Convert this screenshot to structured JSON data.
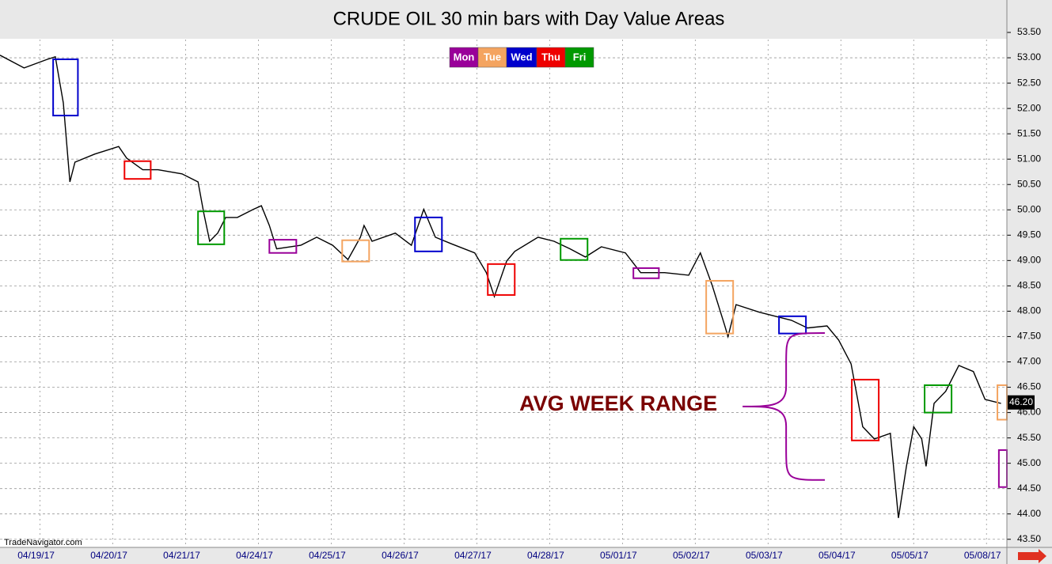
{
  "chart_data": {
    "type": "line",
    "title": "CRUDE OIL 30 min bars with Day Value Areas",
    "watermark": "TradeNavigator.com",
    "xlim": [
      -0.05,
      13.78
    ],
    "xticks": [
      {
        "value": 0.5,
        "label": "04/19/17"
      },
      {
        "value": 1.5,
        "label": "04/20/17"
      },
      {
        "value": 2.5,
        "label": "04/21/17"
      },
      {
        "value": 3.5,
        "label": "04/24/17"
      },
      {
        "value": 4.5,
        "label": "04/25/17"
      },
      {
        "value": 5.5,
        "label": "04/26/17"
      },
      {
        "value": 6.5,
        "label": "04/27/17"
      },
      {
        "value": 7.5,
        "label": "04/28/17"
      },
      {
        "value": 8.5,
        "label": "05/01/17"
      },
      {
        "value": 9.5,
        "label": "05/02/17"
      },
      {
        "value": 10.5,
        "label": "05/03/17"
      },
      {
        "value": 11.5,
        "label": "05/04/17"
      },
      {
        "value": 12.5,
        "label": "05/05/17"
      },
      {
        "value": 13.5,
        "label": "05/08/17"
      }
    ],
    "ylim": [
      43.34,
      54.14
    ],
    "yticks": [
      {
        "value": 43.5,
        "label": "43.50"
      },
      {
        "value": 44,
        "label": "44.00"
      },
      {
        "value": 44.5,
        "label": "44.50"
      },
      {
        "value": 45,
        "label": "45.00"
      },
      {
        "value": 45.5,
        "label": "45.50"
      },
      {
        "value": 46,
        "label": "46.00"
      },
      {
        "value": 46.5,
        "label": "46.50"
      },
      {
        "value": 47,
        "label": "47.00"
      },
      {
        "value": 47.5,
        "label": "47.50"
      },
      {
        "value": 48,
        "label": "48.00"
      },
      {
        "value": 48.5,
        "label": "48.50"
      },
      {
        "value": 49,
        "label": "49.00"
      },
      {
        "value": 49.5,
        "label": "49.50"
      },
      {
        "value": 50,
        "label": "50.00"
      },
      {
        "value": 50.5,
        "label": "50.50"
      },
      {
        "value": 51,
        "label": "51.00"
      },
      {
        "value": 51.5,
        "label": "51.50"
      },
      {
        "value": 52,
        "label": "52.00"
      },
      {
        "value": 52.5,
        "label": "52.50"
      },
      {
        "value": 53,
        "label": "53.00"
      },
      {
        "value": 53.5,
        "label": "53.50"
      }
    ],
    "grid": true,
    "series": [
      {
        "color": "#000000",
        "x": [
          -0.05,
          0.28,
          0.6,
          0.71,
          0.82,
          0.91,
          0.98,
          1.25,
          1.58,
          1.69,
          1.91,
          2.12,
          2.45,
          2.67,
          2.75,
          2.83,
          2.94,
          3.05,
          3.21,
          3.43,
          3.54,
          3.65,
          3.75,
          4.08,
          4.3,
          4.52,
          4.73,
          4.9,
          4.95,
          5.06,
          5.38,
          5.6,
          5.77,
          5.93,
          6.15,
          6.47,
          6.63,
          6.74,
          6.91,
          7.02,
          7.34,
          7.56,
          7.78,
          7.99,
          8.21,
          8.54,
          8.75,
          9.08,
          9.41,
          9.57,
          9.73,
          9.9,
          9.95,
          10.06,
          10.38,
          10.6,
          10.82,
          11.04,
          11.31,
          11.47,
          11.64,
          11.8,
          11.96,
          12.18,
          12.29,
          12.4,
          12.5,
          12.61,
          12.67,
          12.78,
          12.94,
          13.12,
          13.32,
          13.48,
          13.7
        ],
        "values": [
          53.05,
          52.8,
          52.97,
          53.02,
          52.11,
          50.55,
          50.94,
          51.1,
          51.25,
          51.02,
          50.79,
          50.79,
          50.71,
          50.55,
          49.93,
          49.38,
          49.54,
          49.85,
          49.85,
          50.01,
          50.08,
          49.69,
          49.23,
          49.3,
          49.46,
          49.3,
          49.02,
          49.46,
          49.69,
          49.38,
          49.54,
          49.3,
          50.01,
          49.46,
          49.33,
          49.15,
          48.76,
          48.29,
          48.99,
          49.18,
          49.46,
          49.38,
          49.23,
          49.07,
          49.27,
          49.15,
          48.76,
          48.76,
          48.71,
          49.15,
          48.52,
          47.74,
          47.5,
          48.13,
          47.98,
          47.9,
          47.82,
          47.67,
          47.71,
          47.43,
          46.96,
          45.72,
          45.48,
          45.59,
          43.92,
          44.94,
          45.72,
          45.48,
          44.94,
          46.18,
          46.42,
          46.93,
          46.81,
          46.26,
          46.18
        ]
      }
    ],
    "legend": [
      {
        "name": "Mon",
        "color": "#990099"
      },
      {
        "name": "Tue",
        "color": "#f4a460"
      },
      {
        "name": "Wed",
        "color": "#0000cc"
      },
      {
        "name": "Thu",
        "color": "#ee0000"
      },
      {
        "name": "Fri",
        "color": "#009900"
      }
    ],
    "value_areas": [
      {
        "color": "#0000cc",
        "x": [
          0.68,
          1.02
        ],
        "low": 51.86,
        "high": 52.97
      },
      {
        "color": "#ee0000",
        "x": [
          1.66,
          2.02
        ],
        "low": 50.61,
        "high": 50.96
      },
      {
        "color": "#009900",
        "x": [
          2.67,
          3.03
        ],
        "low": 49.32,
        "high": 49.97
      },
      {
        "color": "#990099",
        "x": [
          3.65,
          4.02
        ],
        "low": 49.15,
        "high": 49.41
      },
      {
        "color": "#f4a460",
        "x": [
          4.65,
          5.02
        ],
        "low": 48.98,
        "high": 49.4
      },
      {
        "color": "#0000cc",
        "x": [
          5.65,
          6.02
        ],
        "low": 49.18,
        "high": 49.85
      },
      {
        "color": "#ee0000",
        "x": [
          6.65,
          7.02
        ],
        "low": 48.32,
        "high": 48.93
      },
      {
        "color": "#009900",
        "x": [
          7.65,
          8.02
        ],
        "low": 49.01,
        "high": 49.43
      },
      {
        "color": "#990099",
        "x": [
          8.65,
          9.0
        ],
        "low": 48.65,
        "high": 48.85
      },
      {
        "color": "#f4a460",
        "x": [
          9.65,
          10.02
        ],
        "low": 47.56,
        "high": 48.6
      },
      {
        "color": "#0000cc",
        "x": [
          10.65,
          11.02
        ],
        "low": 47.56,
        "high": 47.9
      },
      {
        "color": "#ee0000",
        "x": [
          11.65,
          12.02
        ],
        "low": 45.45,
        "high": 46.65
      },
      {
        "color": "#009900",
        "x": [
          12.65,
          13.02
        ],
        "low": 46.0,
        "high": 46.54
      },
      {
        "color": "#f4a460",
        "x": [
          13.65,
          13.78
        ],
        "low": 45.86,
        "high": 46.54
      },
      {
        "color": "#990099",
        "x": [
          13.67,
          13.78
        ],
        "low": 44.53,
        "high": 45.26
      }
    ],
    "last_value": 46.2,
    "last_value_label": "46.20",
    "avg_week_range": {
      "label": "AVG WEEK RANGE",
      "high": 47.57,
      "low": 44.67,
      "x": [
        10.15,
        11.28
      ],
      "color": "#990099"
    }
  }
}
